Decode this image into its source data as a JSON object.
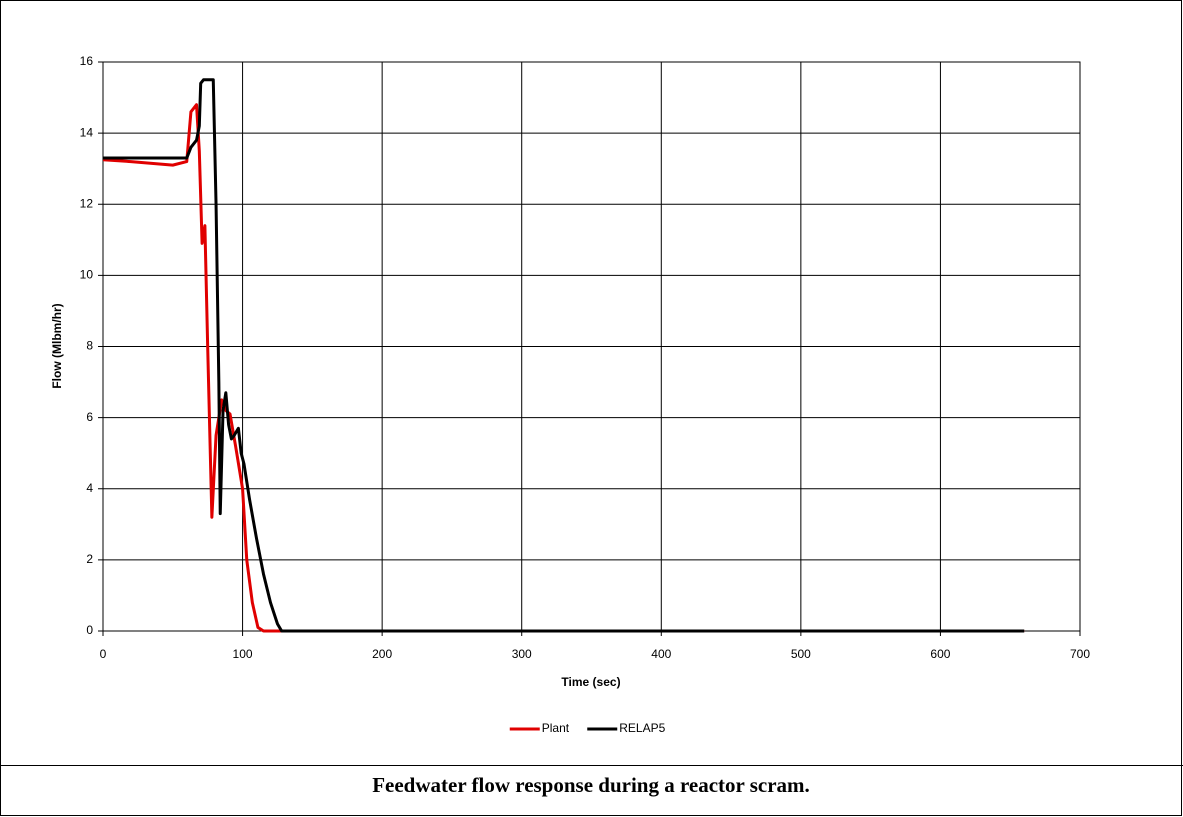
{
  "chart_data": {
    "type": "line",
    "caption": "Feedwater flow response during a reactor scram.",
    "x_label": "Time (sec)",
    "y_label": "Flow (Mlbm/hr)",
    "xlim": [
      0,
      700
    ],
    "xticks": [
      0,
      100,
      200,
      300,
      400,
      500,
      600,
      700
    ],
    "ylim": [
      0,
      16
    ],
    "yticks": [
      0,
      2,
      4,
      6,
      8,
      10,
      12,
      14,
      16
    ],
    "grid": true,
    "legend": "bottom",
    "series": [
      {
        "name": "Plant",
        "color": "#e00000",
        "x": [
          0,
          20,
          50,
          60,
          63,
          67,
          69,
          71,
          73,
          75,
          78,
          81,
          85,
          88,
          91,
          95,
          100,
          103,
          107,
          111,
          115,
          660
        ],
        "values": [
          13.25,
          13.2,
          13.1,
          13.2,
          14.6,
          14.8,
          13.5,
          10.9,
          11.4,
          8,
          3.2,
          5.5,
          6.5,
          6.2,
          6.1,
          5.2,
          4,
          2,
          0.8,
          0.1,
          0,
          0
        ]
      },
      {
        "name": "RELAP5",
        "color": "#000000",
        "x": [
          0,
          60,
          63,
          67,
          69,
          70,
          72,
          79,
          81,
          83,
          84,
          86,
          88,
          90,
          92,
          94,
          97,
          99,
          101,
          105,
          110,
          115,
          120,
          125,
          128,
          660
        ],
        "values": [
          13.3,
          13.3,
          13.6,
          13.8,
          14.2,
          15.4,
          15.5,
          15.5,
          12,
          7,
          3.3,
          6.2,
          6.7,
          5.8,
          5.4,
          5.5,
          5.7,
          5,
          4.7,
          3.7,
          2.6,
          1.6,
          0.8,
          0.2,
          0,
          0
        ]
      }
    ]
  }
}
